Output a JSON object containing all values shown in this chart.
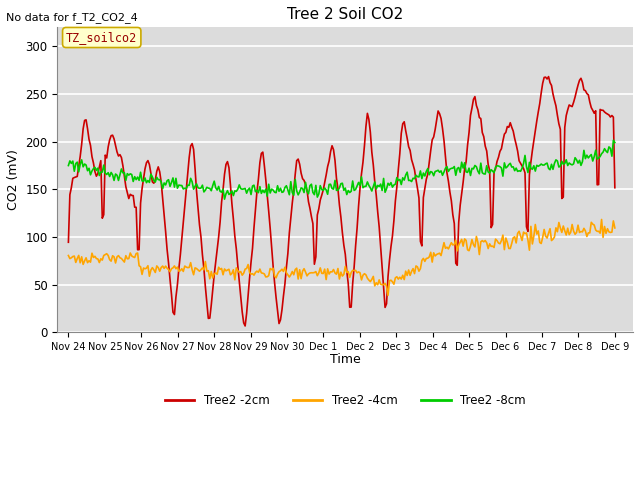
{
  "title": "Tree 2 Soil CO2",
  "note": "No data for f_T2_CO2_4",
  "ylabel": "CO2 (mV)",
  "xlabel": "Time",
  "legend_box_label": "TZ_soilco2",
  "ylim": [
    0,
    320
  ],
  "yticks": [
    0,
    50,
    100,
    150,
    200,
    250,
    300
  ],
  "series": {
    "red": {
      "label": "Tree2 -2cm",
      "color": "#CC0000",
      "linewidth": 1.2
    },
    "orange": {
      "label": "Tree2 -4cm",
      "color": "#FFA500",
      "linewidth": 1.2
    },
    "green": {
      "label": "Tree2 -8cm",
      "color": "#00CC00",
      "linewidth": 1.2
    }
  },
  "outer_bg": "#FFFFFF",
  "plot_bg_color": "#DCDCDC",
  "grid_color": "#FFFFFF",
  "legend_box_text_color": "#990000",
  "legend_box_face": "#FFFFCC",
  "legend_box_edge": "#CCAA00",
  "xtick_labels": [
    "Nov 24",
    "Nov 25",
    "Nov 26",
    "Nov 27",
    "Nov 28",
    "Nov 29",
    "Nov 30",
    "Dec 1",
    "Dec 2",
    "Dec 3",
    "Dec 4",
    "Dec 5",
    "Dec 6",
    "Dec 7",
    "Dec 8",
    "Dec 9"
  ]
}
